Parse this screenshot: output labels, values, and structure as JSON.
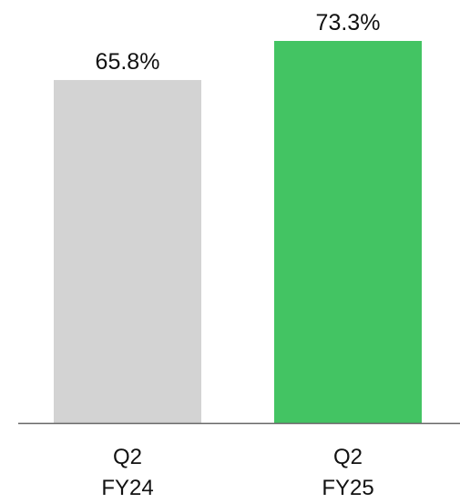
{
  "chart_data": {
    "type": "bar",
    "categories": [
      [
        "Q2",
        "FY24"
      ],
      [
        "Q2",
        "FY25"
      ]
    ],
    "values": [
      65.8,
      73.3
    ],
    "data_labels": [
      "65.8%",
      "73.3%"
    ],
    "colors": [
      "#d3d3d3",
      "#43c463"
    ],
    "axis_color": "#666666",
    "title": "",
    "xlabel": "",
    "ylabel": "",
    "ylim": [
      0,
      73.3
    ],
    "grid": false,
    "legend": "none"
  }
}
